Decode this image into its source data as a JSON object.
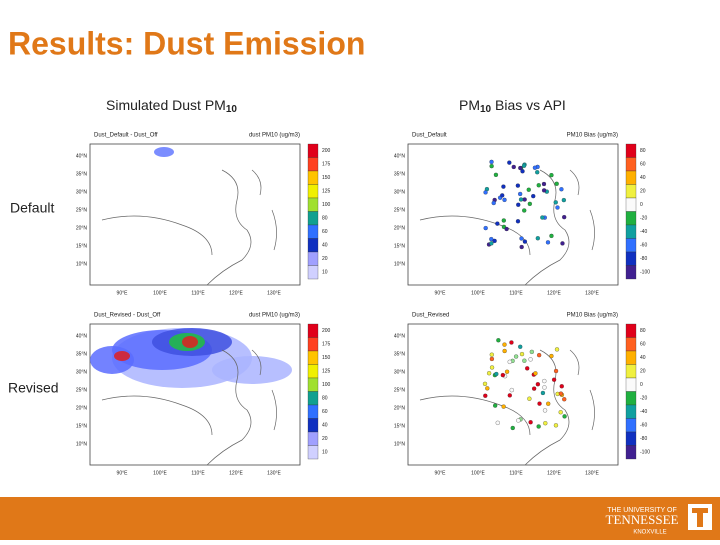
{
  "title": "Results: Dust Emission",
  "columns": [
    {
      "text": "Simulated Dust PM",
      "sub": "10"
    },
    {
      "text": "PM",
      "sub": "10",
      "rest": " Bias vs API"
    }
  ],
  "rows": [
    "Default",
    "Revised"
  ],
  "panels": [
    {
      "title": "Dust_Default - Dust_Off",
      "unit": "dust PM10 (ug/m3)"
    },
    {
      "title": "Dust_Default",
      "unit": "PM10 Bias (ug/m3)"
    },
    {
      "title": "Dust_Revised - Dust_Off",
      "unit": "dust PM10 (ug/m3)"
    },
    {
      "title": "Dust_Revised",
      "unit": "PM10 Bias (ug/m3)"
    }
  ],
  "lat_labels": [
    "40°N",
    "35°N",
    "30°N",
    "25°N",
    "20°N",
    "15°N",
    "10°N"
  ],
  "lon_labels": [
    "90°E",
    "100°E",
    "110°E",
    "120°E",
    "130°E"
  ],
  "colorbars": [
    [
      "200",
      "175",
      "150",
      "125",
      "100",
      "80",
      "60",
      "40",
      "20",
      "10"
    ],
    [
      "80",
      "60",
      "40",
      "20",
      "0",
      "-20",
      "-40",
      "-60",
      "-80",
      "-100"
    ]
  ],
  "footer": {
    "line1": "THE UNIVERSITY OF",
    "line2": "TENNESSEE",
    "line3": "KNOXVILLE"
  }
}
